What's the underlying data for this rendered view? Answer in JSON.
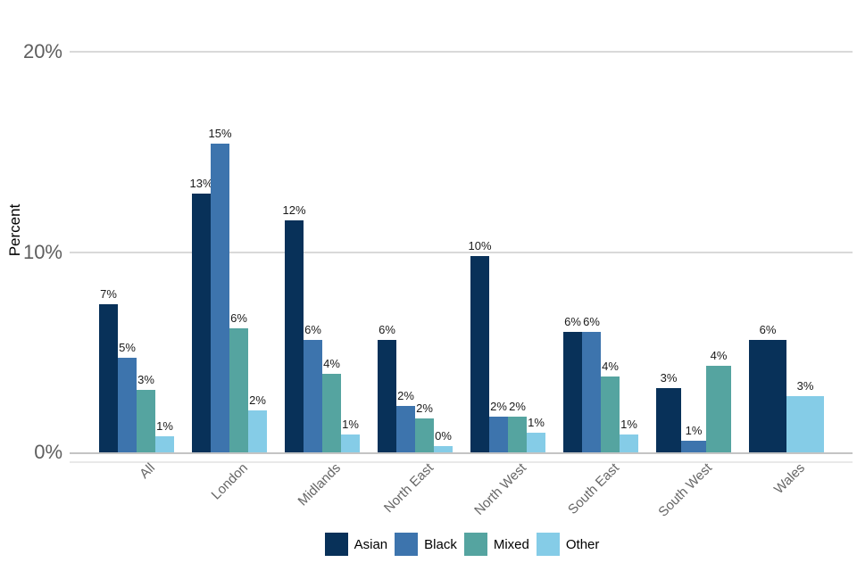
{
  "chart_data": {
    "type": "bar",
    "title": "",
    "ylabel": "Percent",
    "xlabel": "",
    "ylim": [
      0,
      20
    ],
    "grid": true,
    "legend_position": "bottom",
    "yticks": [
      {
        "value": 0,
        "label": "0%"
      },
      {
        "value": 10,
        "label": "10%"
      },
      {
        "value": 20,
        "label": "20%"
      }
    ],
    "categories": [
      "All",
      "London",
      "Midlands",
      "North East",
      "North West",
      "South East",
      "South West",
      "Wales"
    ],
    "series": [
      {
        "name": "Asian",
        "color": "#083159",
        "values": [
          7.4,
          12.9,
          11.6,
          5.6,
          9.8,
          6.0,
          3.2,
          5.6
        ],
        "labels": [
          "7%",
          "13%",
          "12%",
          "6%",
          "10%",
          "6%",
          "3%",
          "6%"
        ]
      },
      {
        "name": "Black",
        "color": "#3d74ad",
        "values": [
          4.7,
          15.4,
          5.6,
          2.3,
          1.8,
          6.0,
          0.6,
          null
        ],
        "labels": [
          "5%",
          "15%",
          "6%",
          "2%",
          "2%",
          "6%",
          "1%",
          null
        ]
      },
      {
        "name": "Mixed",
        "color": "#55a4a0",
        "values": [
          3.1,
          6.2,
          3.9,
          1.7,
          1.8,
          3.8,
          4.3,
          null
        ],
        "labels": [
          "3%",
          "6%",
          "4%",
          "2%",
          "2%",
          "4%",
          "4%",
          null
        ]
      },
      {
        "name": "Other",
        "color": "#85cce7",
        "values": [
          0.8,
          2.1,
          0.9,
          0.3,
          1.0,
          0.9,
          null,
          2.8
        ],
        "labels": [
          "1%",
          "2%",
          "1%",
          "0%",
          "1%",
          "1%",
          null,
          "3%"
        ]
      }
    ]
  },
  "colors": {
    "background": "#ffffff",
    "gridline": "#d9d9d9",
    "axis_line": "#c4c4c4",
    "axis_line_secondary": "#e9e9e9",
    "y_tick_label": "#5e5e5e",
    "x_tick_label": "#666666",
    "data_label": "#1a1a1a",
    "axis_title": "#000000",
    "legend_label": "#000000"
  }
}
